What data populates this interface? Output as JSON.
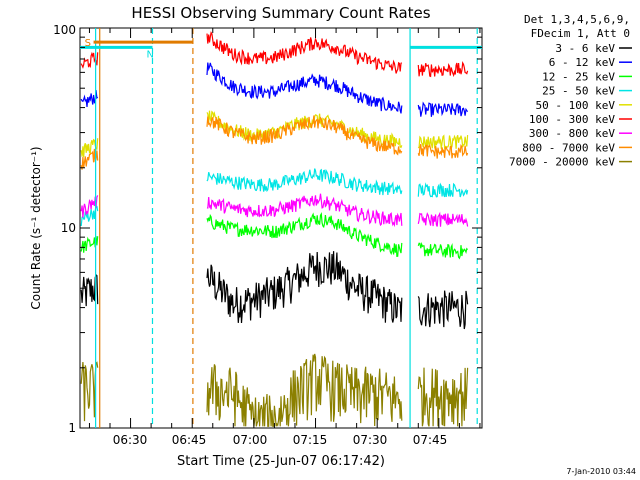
{
  "chart_data": {
    "type": "line",
    "title": "HESSI Observing Summary Count Rates",
    "xlabel": "Start Time (25-Jun-07 06:17:42)",
    "ylabel": "Count Rate (s⁻¹ detector⁻¹)",
    "y_scale": "log",
    "ylim": [
      1,
      100
    ],
    "xlim": [
      "06:17:42",
      "07:55:30"
    ],
    "x_ticks": [
      "06:30",
      "06:45",
      "07:00",
      "07:15",
      "07:30",
      "07:45"
    ],
    "y_ticks": [
      "1",
      "10",
      "100"
    ],
    "grid": false,
    "legend_position": "top-right",
    "legend_header": [
      "Det 1,3,4,5,6,9,",
      "FDecim 1, Att 0"
    ],
    "markers": [
      {
        "label": "S",
        "color": "#e07b00"
      },
      {
        "label": "N",
        "color": "#00e0e0"
      }
    ],
    "data_gaps": [
      [
        "06:22:00",
        "06:48:30"
      ],
      [
        "07:36:00",
        "07:40:00"
      ]
    ],
    "series": [
      {
        "name": "3 - 6 keV",
        "color": "#000000",
        "points": [
          [
            "06:18",
            "4.6"
          ],
          [
            "06:21",
            "5.0"
          ],
          [
            "06:49",
            "5.7"
          ],
          [
            "06:55",
            "4.2"
          ],
          [
            "07:00",
            "4.4"
          ],
          [
            "07:05",
            "4.8"
          ],
          [
            "07:10",
            "5.5"
          ],
          [
            "07:15",
            "6.5"
          ],
          [
            "07:20",
            "6.3"
          ],
          [
            "07:25",
            "5.0"
          ],
          [
            "07:30",
            "4.5"
          ],
          [
            "07:35",
            "3.9"
          ],
          [
            "07:41",
            "4.0"
          ],
          [
            "07:45",
            "4.0"
          ],
          [
            "07:52",
            "4.0"
          ]
        ]
      },
      {
        "name": "6 - 12 keV",
        "color": "#0000ff",
        "points": [
          [
            "06:18",
            "41"
          ],
          [
            "06:21",
            "45"
          ],
          [
            "06:49",
            "63"
          ],
          [
            "06:55",
            "51"
          ],
          [
            "07:00",
            "48"
          ],
          [
            "07:05",
            "48"
          ],
          [
            "07:10",
            "52"
          ],
          [
            "07:15",
            "55"
          ],
          [
            "07:20",
            "52"
          ],
          [
            "07:25",
            "46"
          ],
          [
            "07:30",
            "42"
          ],
          [
            "07:35",
            "40"
          ],
          [
            "07:41",
            "39"
          ],
          [
            "07:45",
            "39"
          ],
          [
            "07:52",
            "39"
          ]
        ]
      },
      {
        "name": "12 - 25 keV",
        "color": "#00ff00",
        "points": [
          [
            "06:18",
            "8.0"
          ],
          [
            "06:21",
            "8.5"
          ],
          [
            "06:49",
            "10.8"
          ],
          [
            "06:55",
            "9.9"
          ],
          [
            "07:00",
            "9.8"
          ],
          [
            "07:05",
            "9.6"
          ],
          [
            "07:10",
            "10.3"
          ],
          [
            "07:15",
            "11.2"
          ],
          [
            "07:20",
            "10.6"
          ],
          [
            "07:25",
            "9.2"
          ],
          [
            "07:30",
            "8.4"
          ],
          [
            "07:35",
            "7.8"
          ],
          [
            "07:41",
            "7.8"
          ],
          [
            "07:45",
            "7.7"
          ],
          [
            "07:52",
            "7.6"
          ]
        ]
      },
      {
        "name": "25 - 50 keV",
        "color": "#00e5e5",
        "points": [
          [
            "06:18",
            "11"
          ],
          [
            "06:21",
            "12"
          ],
          [
            "06:49",
            "18"
          ],
          [
            "06:55",
            "17"
          ],
          [
            "07:00",
            "16.5"
          ],
          [
            "07:05",
            "16.5"
          ],
          [
            "07:10",
            "17.5"
          ],
          [
            "07:15",
            "18.5"
          ],
          [
            "07:20",
            "17.8"
          ],
          [
            "07:25",
            "16.5"
          ],
          [
            "07:30",
            "16"
          ],
          [
            "07:35",
            "15.5"
          ],
          [
            "07:41",
            "15.5"
          ],
          [
            "07:45",
            "15.5"
          ],
          [
            "07:52",
            "15.5"
          ]
        ]
      },
      {
        "name": "50 - 100 keV",
        "color": "#e0e000",
        "points": [
          [
            "06:18",
            "24"
          ],
          [
            "06:21",
            "26"
          ],
          [
            "06:49",
            "36"
          ],
          [
            "06:55",
            "31"
          ],
          [
            "07:00",
            "29"
          ],
          [
            "07:05",
            "30"
          ],
          [
            "07:10",
            "33"
          ],
          [
            "07:15",
            "35"
          ],
          [
            "07:20",
            "33"
          ],
          [
            "07:25",
            "30"
          ],
          [
            "07:30",
            "28"
          ],
          [
            "07:35",
            "27"
          ],
          [
            "07:41",
            "27"
          ],
          [
            "07:45",
            "27"
          ],
          [
            "07:52",
            "27"
          ]
        ]
      },
      {
        "name": "100 - 300 keV",
        "color": "#ff0000",
        "points": [
          [
            "06:18",
            "65"
          ],
          [
            "06:21",
            "70"
          ],
          [
            "06:49",
            "90"
          ],
          [
            "06:55",
            "74"
          ],
          [
            "07:00",
            "70"
          ],
          [
            "07:05",
            "71"
          ],
          [
            "07:10",
            "78"
          ],
          [
            "07:15",
            "85"
          ],
          [
            "07:20",
            "80"
          ],
          [
            "07:25",
            "72"
          ],
          [
            "07:30",
            "67"
          ],
          [
            "07:35",
            "63"
          ],
          [
            "07:41",
            "62"
          ],
          [
            "07:45",
            "62"
          ],
          [
            "07:52",
            "62"
          ]
        ]
      },
      {
        "name": "300 - 800 keV",
        "color": "#ff00ff",
        "points": [
          [
            "06:18",
            "12"
          ],
          [
            "06:21",
            "13.5"
          ],
          [
            "06:49",
            "13.5"
          ],
          [
            "06:55",
            "12.5"
          ],
          [
            "07:00",
            "12.2"
          ],
          [
            "07:05",
            "12.3"
          ],
          [
            "07:10",
            "13.0"
          ],
          [
            "07:15",
            "14.0"
          ],
          [
            "07:20",
            "13.0"
          ],
          [
            "07:25",
            "11.8"
          ],
          [
            "07:30",
            "11.3"
          ],
          [
            "07:35",
            "11.0"
          ],
          [
            "07:41",
            "11.0"
          ],
          [
            "07:45",
            "11.0"
          ],
          [
            "07:52",
            "11.0"
          ]
        ]
      },
      {
        "name": "800 - 7000 keV",
        "color": "#ff8c00",
        "points": [
          [
            "06:18",
            "21"
          ],
          [
            "06:21",
            "23"
          ],
          [
            "06:49",
            "35"
          ],
          [
            "06:55",
            "30"
          ],
          [
            "07:00",
            "28"
          ],
          [
            "07:05",
            "29"
          ],
          [
            "07:10",
            "32"
          ],
          [
            "07:15",
            "34"
          ],
          [
            "07:20",
            "32"
          ],
          [
            "07:25",
            "28"
          ],
          [
            "07:30",
            "26"
          ],
          [
            "07:35",
            "25"
          ],
          [
            "07:41",
            "24.5"
          ],
          [
            "07:45",
            "24"
          ],
          [
            "07:52",
            "24"
          ]
        ]
      },
      {
        "name": "7000 - 20000 keV",
        "color": "#8b8000",
        "points": [
          [
            "06:18",
            "1.6"
          ],
          [
            "06:21",
            "1.6"
          ],
          [
            "06:49",
            "1.6"
          ],
          [
            "06:55",
            "1.5"
          ],
          [
            "07:00",
            "1.1"
          ],
          [
            "07:05",
            "1.1"
          ],
          [
            "07:10",
            "1.5"
          ],
          [
            "07:15",
            "1.8"
          ],
          [
            "07:20",
            "1.6"
          ],
          [
            "07:25",
            "1.5"
          ],
          [
            "07:30",
            "1.5"
          ],
          [
            "07:35",
            "1.4"
          ],
          [
            "07:41",
            "1.5"
          ],
          [
            "07:45",
            "1.5"
          ],
          [
            "07:52",
            "1.5"
          ]
        ]
      }
    ],
    "attenuator_bars": [
      {
        "label": "S",
        "color": "#e07b00",
        "y": "85",
        "x": [
          "06:21:00",
          "06:45:10"
        ]
      },
      {
        "label": "N",
        "color": "#00e0e0",
        "y": "80",
        "x": [
          "06:17:42",
          "06:35:20"
        ]
      },
      {
        "label": "N",
        "color": "#00e0e0",
        "y": "80",
        "x": [
          "07:38:00",
          "07:55:30"
        ]
      }
    ],
    "vertical_lines": [
      {
        "color": "#00e0e0",
        "style": "solid",
        "x": "06:21:30"
      },
      {
        "color": "#e07b00",
        "style": "solid",
        "x": "06:22:30"
      },
      {
        "color": "#00e0e0",
        "style": "dashed",
        "x": "06:35:20"
      },
      {
        "color": "#e07b00",
        "style": "dashed",
        "x": "06:45:10"
      },
      {
        "color": "#00e0e0",
        "style": "solid",
        "x": "07:38:00"
      },
      {
        "color": "#00e0e0",
        "style": "dashed",
        "x": "07:54:20"
      }
    ]
  },
  "timestamp": "7-Jan-2010 03:44"
}
